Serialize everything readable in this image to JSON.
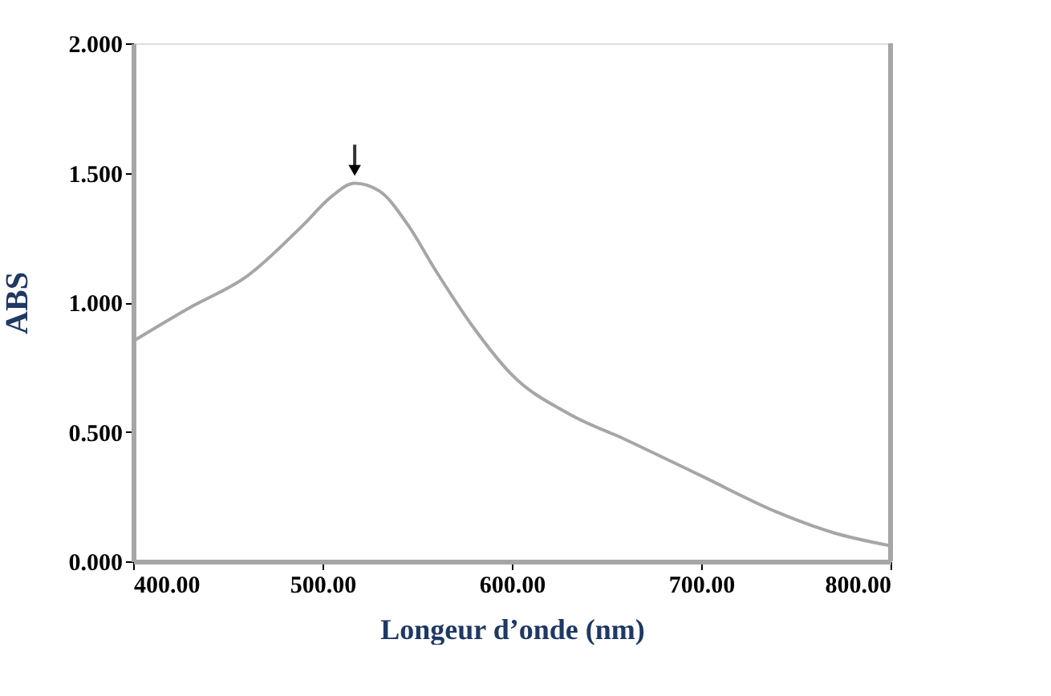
{
  "chart_data": {
    "type": "line",
    "xlabel": "Longeur d’onde (nm)",
    "ylabel": "ABS",
    "x": [
      400,
      430,
      460,
      490,
      505,
      517,
      530,
      545,
      560,
      580,
      600,
      630,
      660,
      700,
      740,
      770,
      800
    ],
    "series": [
      {
        "color": "#a6a6a6",
        "values": [
          0.85,
          0.98,
          1.1,
          1.3,
          1.41,
          1.46,
          1.43,
          1.3,
          1.12,
          0.9,
          0.72,
          0.57,
          0.47,
          0.33,
          0.19,
          0.11,
          0.06
        ]
      }
    ],
    "xlim": [
      400,
      800
    ],
    "xticks": [
      {
        "value": 400,
        "label": "400.00"
      },
      {
        "value": 500,
        "label": "500.00"
      },
      {
        "value": 600,
        "label": "600.00"
      },
      {
        "value": 700,
        "label": "700.00"
      },
      {
        "value": 800,
        "label": "800.00"
      }
    ],
    "ylim": [
      0,
      2
    ],
    "yticks": [
      {
        "value": 0,
        "label": "0.000"
      },
      {
        "value": 0.5,
        "label": "0.500"
      },
      {
        "value": 1,
        "label": "1.000"
      },
      {
        "value": 1.5,
        "label": "1.500"
      },
      {
        "value": 2,
        "label": "2.000"
      }
    ],
    "grid": false,
    "marker": "none",
    "line_style": "solid"
  }
}
